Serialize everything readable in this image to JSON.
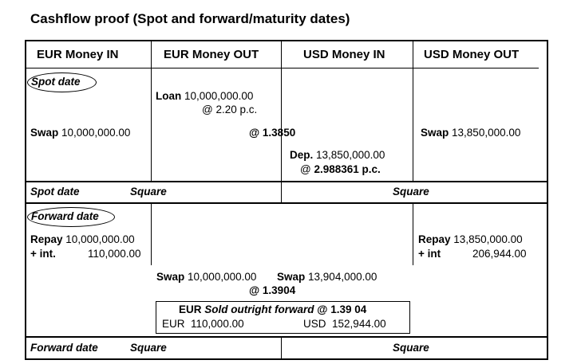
{
  "title": "Cashflow proof (Spot and forward/maturity dates)",
  "columns": [
    "EUR Money IN",
    "EUR Money OUT",
    "USD Money IN",
    "USD Money OUT"
  ],
  "spot": {
    "label": "Spot date",
    "loan_label": "Loan",
    "loan_amount": "10,000,000.00",
    "loan_rate": "@ 2.20 p.c.",
    "swap_label": "Swap",
    "swap_eur": "10,000,000.00",
    "rate": "@ 1.3850",
    "swap_usd": "13,850,000.00",
    "dep_label": "Dep.",
    "dep_amount": "13,850,000.00",
    "dep_rate_prefix": "@",
    "dep_rate": "2.988361 p.c.",
    "footer_label": "Spot date",
    "square1": "Square",
    "square2": "Square"
  },
  "forward": {
    "label": "Forward date",
    "repay_label": "Repay",
    "repay_eur": "10,000,000.00",
    "int_label": "+ int.",
    "int_eur": "110,000.00",
    "repay_usd": "13,850,000.00",
    "int_label_usd": "+ int",
    "int_usd": "206,944.00",
    "swap_label": "Swap",
    "swap_eur": "10,000,000.00",
    "swap_usd": "13,904,000.00",
    "rate": "@ 1.3904",
    "outright_eur": "EUR",
    "outright_title": "Sold outright forward",
    "outright_rate": "@ 1.39 04",
    "outright_eur_label": "EUR",
    "outright_eur_amount": "110,000.00",
    "outright_usd_label": "USD",
    "outright_usd_amount": "152,944.00",
    "footer_label": "Forward date",
    "square1": "Square",
    "square2": "Square"
  }
}
